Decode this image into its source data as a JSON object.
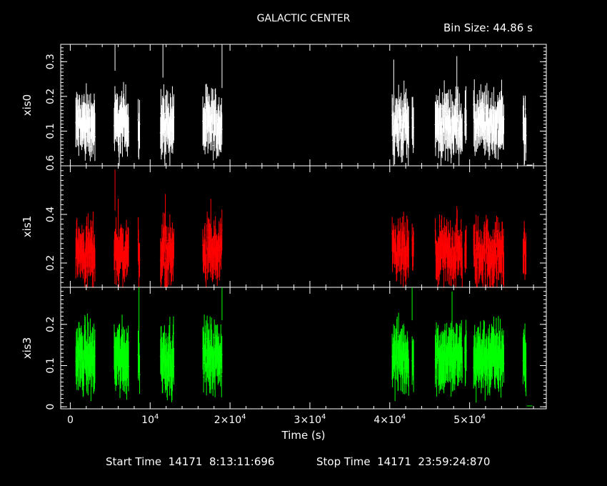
{
  "header": {
    "title": "GALACTIC CENTER",
    "bin_size_label": "Bin Size:",
    "bin_size_value": "44.86 s"
  },
  "footer": {
    "start_label": "Start Time",
    "start_day": "14171",
    "start_time": "8:13:11:696",
    "stop_label": "Stop Time",
    "stop_day": "14171",
    "stop_time": "23:59:24:870"
  },
  "colors": {
    "background": "#000000",
    "axes": "#ffffff",
    "xis0": "#ffffff",
    "xis1": "#ff0000",
    "xis3": "#00ff00"
  },
  "chart_data": {
    "type": "line",
    "title": "GALACTIC CENTER",
    "xlabel": "Time (s)",
    "xlim": [
      -1200,
      59600
    ],
    "x_ticks": [
      {
        "value": 0,
        "label": "0"
      },
      {
        "value": 10000,
        "label": "10",
        "exp": "4"
      },
      {
        "value": 20000,
        "label": "2×10",
        "exp": "4"
      },
      {
        "value": 30000,
        "label": "3×10",
        "exp": "4"
      },
      {
        "value": 40000,
        "label": "4×10",
        "exp": "4"
      },
      {
        "value": 50000,
        "label": "5×10",
        "exp": "4"
      }
    ],
    "observation_windows": [
      [
        700,
        3100
      ],
      [
        5500,
        7300
      ],
      [
        8500,
        8700
      ],
      [
        11300,
        13000
      ],
      [
        16600,
        19000
      ],
      [
        40300,
        42400
      ],
      [
        42800,
        43000
      ],
      [
        45700,
        49100
      ],
      [
        49400,
        49600
      ],
      [
        50500,
        54300
      ],
      [
        56700,
        57100
      ]
    ],
    "panels": [
      {
        "name": "xis0",
        "ylabel": "xis0",
        "ylim": [
          0.0,
          0.35
        ],
        "y_ticks": [
          {
            "value": 0.1,
            "label": "0.1"
          },
          {
            "value": 0.2,
            "label": "0.2"
          },
          {
            "value": 0.3,
            "label": "0.3"
          }
        ],
        "bottom_label": "0.6",
        "mean_rate": 0.12,
        "spread": 0.035,
        "error": 0.055,
        "peaks": [
          [
            5600,
            0.34
          ],
          [
            11600,
            0.32
          ],
          [
            19000,
            0.29
          ],
          [
            40500,
            0.24
          ],
          [
            48400,
            0.25
          ]
        ],
        "last_point": [
          57500,
          0.002
        ]
      },
      {
        "name": "xis1",
        "ylabel": "xis1",
        "ylim": [
          0.1,
          0.6
        ],
        "y_ticks": [
          {
            "value": 0.2,
            "label": "0.2"
          },
          {
            "value": 0.4,
            "label": "0.4"
          }
        ],
        "mean_rate": 0.24,
        "spread": 0.055,
        "error": 0.07,
        "peaks": [
          [
            5600,
            0.5
          ],
          [
            6000,
            0.38
          ],
          [
            11900,
            0.4
          ],
          [
            17600,
            0.38
          ],
          [
            48400,
            0.35
          ]
        ],
        "last_point": null
      },
      {
        "name": "xis3",
        "ylabel": "xis3",
        "ylim": [
          -0.005,
          0.29
        ],
        "y_ticks": [
          {
            "value": 0.0,
            "label": "0"
          },
          {
            "value": 0.1,
            "label": "0.1"
          },
          {
            "value": 0.2,
            "label": "0.2"
          }
        ],
        "mean_rate": 0.12,
        "spread": 0.03,
        "error": 0.05,
        "peaks": [
          [
            8600,
            0.25
          ],
          [
            19000,
            0.27
          ],
          [
            42800,
            0.27
          ],
          [
            47800,
            0.22
          ]
        ],
        "last_point": [
          57500,
          0.002
        ]
      }
    ]
  }
}
